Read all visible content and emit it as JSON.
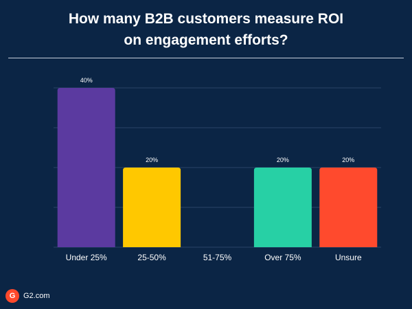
{
  "chart_data": {
    "type": "bar",
    "title_lines": [
      "How many B2B customers measure ROI",
      "on engagement efforts?"
    ],
    "categories": [
      "Under 25%",
      "25-50%",
      "51-75%",
      "Over 75%",
      "Unsure"
    ],
    "values": [
      40,
      20,
      0,
      20,
      20
    ],
    "data_labels": [
      "40%",
      "20%",
      "",
      "20%",
      "20%"
    ],
    "bar_colors": [
      "#5b3aa0",
      "#ffc800",
      "#ffffff",
      "#27d0a5",
      "#ff4a2d"
    ],
    "ylim": [
      0,
      40
    ],
    "grid": true,
    "xlabel": "",
    "ylabel": ""
  },
  "brand": {
    "logo_letter": "G",
    "text": "G2.com",
    "logo_color": "#ff492c"
  },
  "colors": {
    "background": "#0b2545",
    "grid": "#2a4466",
    "text": "#ffffff"
  }
}
